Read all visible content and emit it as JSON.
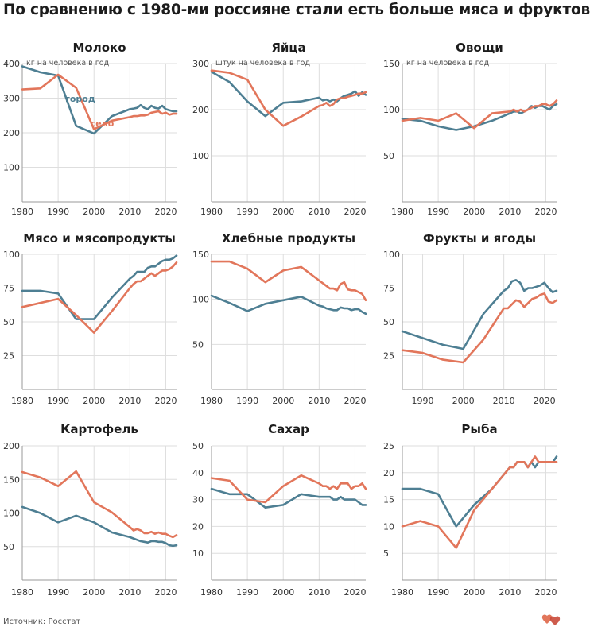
{
  "title": "По сравнению с 1980-ми россияне стали есть больше мяса и фруктов",
  "source": "Источник: Росстат",
  "colors": {
    "город": "#4e7f93",
    "село": "#e2765b"
  },
  "logo_icon": "red-heart-logo-icon",
  "chart_data": [
    {
      "type": "line",
      "title": "Молоко",
      "unit_note": "кг на человека в год",
      "xlim": [
        1980,
        2023
      ],
      "ylim": [
        0,
        400
      ],
      "xticks": [
        1980,
        1990,
        2000,
        2010,
        2020
      ],
      "yticks": [
        100,
        200,
        300,
        400
      ],
      "series_labels": [
        {
          "series": "город",
          "text": "город"
        },
        {
          "series": "село",
          "text": "село"
        }
      ],
      "series": [
        {
          "name": "город",
          "x": [
            1980,
            1985,
            1990,
            1995,
            2000,
            2005,
            2010,
            2011,
            2012,
            2013,
            2014,
            2015,
            2016,
            2017,
            2018,
            2019,
            2020,
            2021,
            2022,
            2023
          ],
          "y": [
            392,
            375,
            365,
            220,
            198,
            248,
            268,
            270,
            272,
            280,
            272,
            268,
            278,
            272,
            270,
            278,
            268,
            265,
            262,
            262
          ]
        },
        {
          "name": "село",
          "x": [
            1980,
            1985,
            1990,
            1995,
            2000,
            2005,
            2010,
            2011,
            2012,
            2013,
            2014,
            2015,
            2016,
            2017,
            2018,
            2019,
            2020,
            2021,
            2022,
            2023
          ],
          "y": [
            325,
            328,
            368,
            330,
            210,
            235,
            245,
            248,
            248,
            250,
            250,
            252,
            258,
            260,
            262,
            255,
            258,
            252,
            255,
            255
          ]
        }
      ]
    },
    {
      "type": "line",
      "title": "Яйца",
      "unit_note": "штук на человека в год",
      "xlim": [
        1980,
        2023
      ],
      "ylim": [
        0,
        300
      ],
      "xticks": [
        1980,
        1990,
        2000,
        2010,
        2020
      ],
      "yticks": [
        100,
        200,
        300
      ],
      "series": [
        {
          "name": "город",
          "x": [
            1980,
            1985,
            1990,
            1995,
            2000,
            2005,
            2010,
            2011,
            2012,
            2013,
            2014,
            2015,
            2016,
            2017,
            2018,
            2019,
            2020,
            2021,
            2022,
            2023
          ],
          "y": [
            282,
            260,
            218,
            186,
            215,
            218,
            226,
            220,
            222,
            218,
            222,
            218,
            225,
            230,
            232,
            235,
            240,
            230,
            238,
            232
          ]
        },
        {
          "name": "село",
          "x": [
            1980,
            1985,
            1990,
            1995,
            2000,
            2005,
            2010,
            2011,
            2012,
            2013,
            2014,
            2015,
            2016,
            2017,
            2018,
            2019,
            2020,
            2021,
            2022,
            2023
          ],
          "y": [
            285,
            280,
            265,
            200,
            165,
            185,
            208,
            210,
            215,
            208,
            212,
            222,
            225,
            225,
            228,
            230,
            232,
            235,
            235,
            238
          ]
        }
      ]
    },
    {
      "type": "line",
      "title": "Овощи",
      "unit_note": "кг на человека в год",
      "xlim": [
        1980,
        2023
      ],
      "ylim": [
        0,
        150
      ],
      "xticks": [
        1980,
        1990,
        2000,
        2010,
        2020
      ],
      "yticks": [
        50,
        100,
        150
      ],
      "series": [
        {
          "name": "город",
          "x": [
            1980,
            1985,
            1990,
            1995,
            2000,
            2005,
            2010,
            2011,
            2012,
            2013,
            2014,
            2015,
            2016,
            2017,
            2018,
            2019,
            2020,
            2021,
            2022,
            2023
          ],
          "y": [
            90,
            88,
            82,
            78,
            82,
            88,
            96,
            98,
            98,
            96,
            98,
            100,
            104,
            102,
            104,
            104,
            102,
            100,
            104,
            106
          ]
        },
        {
          "name": "село",
          "x": [
            1980,
            1985,
            1990,
            1995,
            2000,
            2005,
            2010,
            2011,
            2012,
            2013,
            2014,
            2015,
            2016,
            2017,
            2018,
            2019,
            2020,
            2021,
            2022,
            2023
          ],
          "y": [
            88,
            91,
            88,
            96,
            80,
            96,
            98,
            100,
            98,
            100,
            98,
            100,
            102,
            104,
            104,
            106,
            106,
            104,
            106,
            110
          ]
        }
      ]
    },
    {
      "type": "line",
      "title": "Мясо и мясопродукты",
      "xlim": [
        1980,
        2023
      ],
      "ylim": [
        0,
        100
      ],
      "xticks": [
        1980,
        1990,
        2000,
        2010,
        2020
      ],
      "yticks": [
        25,
        50,
        75,
        100
      ],
      "series": [
        {
          "name": "город",
          "x": [
            1980,
            1985,
            1990,
            1995,
            2000,
            2005,
            2010,
            2011,
            2012,
            2013,
            2014,
            2015,
            2016,
            2017,
            2018,
            2019,
            2020,
            2021,
            2022,
            2023
          ],
          "y": [
            73,
            73,
            71,
            52,
            52,
            68,
            82,
            84,
            87,
            87,
            87,
            90,
            91,
            91,
            93,
            95,
            96,
            96,
            97,
            99
          ]
        },
        {
          "name": "село",
          "x": [
            1980,
            1985,
            1990,
            1995,
            2000,
            2005,
            2010,
            2011,
            2012,
            2013,
            2014,
            2015,
            2016,
            2017,
            2018,
            2019,
            2020,
            2021,
            2022,
            2023
          ],
          "y": [
            61,
            64,
            67,
            55,
            42,
            58,
            75,
            78,
            80,
            80,
            82,
            84,
            86,
            84,
            86,
            88,
            88,
            89,
            91,
            94
          ]
        }
      ]
    },
    {
      "type": "line",
      "title": "Хлебные продукты",
      "xlim": [
        1980,
        2023
      ],
      "ylim": [
        0,
        150
      ],
      "xticks": [
        1980,
        1990,
        2000,
        2010,
        2020
      ],
      "yticks": [
        50,
        100,
        150
      ],
      "series": [
        {
          "name": "город",
          "x": [
            1980,
            1985,
            1990,
            1995,
            2000,
            2005,
            2010,
            2011,
            2012,
            2013,
            2014,
            2015,
            2016,
            2017,
            2018,
            2019,
            2020,
            2021,
            2022,
            2023
          ],
          "y": [
            104,
            96,
            87,
            95,
            99,
            103,
            93,
            92,
            90,
            89,
            88,
            88,
            91,
            90,
            90,
            88,
            89,
            89,
            86,
            84
          ]
        },
        {
          "name": "село",
          "x": [
            1980,
            1985,
            1990,
            1995,
            2000,
            2005,
            2010,
            2011,
            2012,
            2013,
            2014,
            2015,
            2016,
            2017,
            2018,
            2019,
            2020,
            2021,
            2022,
            2023
          ],
          "y": [
            142,
            142,
            134,
            119,
            132,
            136,
            121,
            118,
            115,
            112,
            112,
            110,
            117,
            119,
            111,
            110,
            110,
            108,
            106,
            99
          ]
        }
      ]
    },
    {
      "type": "line",
      "title": "Фрукты и ягоды",
      "xlim": [
        1985,
        2023
      ],
      "ylim": [
        0,
        100
      ],
      "xticks": [
        1990,
        2000,
        2010,
        2020
      ],
      "yticks": [
        25,
        50,
        75,
        100
      ],
      "series": [
        {
          "name": "город",
          "x": [
            1985,
            1990,
            1995,
            2000,
            2005,
            2010,
            2011,
            2012,
            2013,
            2014,
            2015,
            2016,
            2017,
            2018,
            2019,
            2020,
            2021,
            2022,
            2023
          ],
          "y": [
            43,
            38,
            33,
            30,
            56,
            73,
            75,
            80,
            81,
            79,
            73,
            75,
            75,
            76,
            77,
            79,
            75,
            72,
            73
          ]
        },
        {
          "name": "село",
          "x": [
            1985,
            1990,
            1995,
            2000,
            2005,
            2010,
            2011,
            2012,
            2013,
            2014,
            2015,
            2016,
            2017,
            2018,
            2019,
            2020,
            2021,
            2022,
            2023
          ],
          "y": [
            29,
            27,
            22,
            20,
            37,
            60,
            60,
            63,
            66,
            65,
            61,
            64,
            67,
            68,
            70,
            71,
            65,
            64,
            66
          ]
        }
      ]
    },
    {
      "type": "line",
      "title": "Картофель",
      "xlim": [
        1980,
        2023
      ],
      "ylim": [
        0,
        200
      ],
      "xticks": [
        1980,
        1990,
        2000,
        2010,
        2020
      ],
      "yticks": [
        50,
        100,
        150,
        200
      ],
      "series": [
        {
          "name": "город",
          "x": [
            1980,
            1985,
            1990,
            1995,
            2000,
            2005,
            2010,
            2011,
            2012,
            2013,
            2014,
            2015,
            2016,
            2017,
            2018,
            2019,
            2020,
            2021,
            2022,
            2023
          ],
          "y": [
            109,
            100,
            86,
            96,
            86,
            71,
            64,
            62,
            60,
            58,
            57,
            56,
            58,
            58,
            57,
            57,
            55,
            52,
            51,
            52
          ]
        },
        {
          "name": "село",
          "x": [
            1980,
            1985,
            1990,
            1995,
            2000,
            2005,
            2010,
            2011,
            2012,
            2013,
            2014,
            2015,
            2016,
            2017,
            2018,
            2019,
            2020,
            2021,
            2022,
            2023
          ],
          "y": [
            161,
            153,
            140,
            162,
            116,
            101,
            79,
            74,
            76,
            74,
            70,
            70,
            72,
            69,
            71,
            69,
            69,
            66,
            64,
            67
          ]
        }
      ]
    },
    {
      "type": "line",
      "title": "Сахар",
      "xlim": [
        1980,
        2023
      ],
      "ylim": [
        0,
        50
      ],
      "xticks": [
        1980,
        1990,
        2000,
        2010,
        2020
      ],
      "yticks": [
        10,
        20,
        30,
        40,
        50
      ],
      "series": [
        {
          "name": "город",
          "x": [
            1980,
            1985,
            1990,
            1995,
            2000,
            2005,
            2010,
            2011,
            2012,
            2013,
            2014,
            2015,
            2016,
            2017,
            2018,
            2019,
            2020,
            2021,
            2022,
            2023
          ],
          "y": [
            34,
            32,
            32,
            27,
            28,
            32,
            31,
            31,
            31,
            31,
            30,
            30,
            31,
            30,
            30,
            30,
            30,
            29,
            28,
            28
          ]
        },
        {
          "name": "село",
          "x": [
            1980,
            1985,
            1990,
            1995,
            2000,
            2005,
            2010,
            2011,
            2012,
            2013,
            2014,
            2015,
            2016,
            2017,
            2018,
            2019,
            2020,
            2021,
            2022,
            2023
          ],
          "y": [
            38,
            37,
            30,
            29,
            35,
            39,
            36,
            35,
            35,
            34,
            35,
            34,
            36,
            36,
            36,
            34,
            35,
            35,
            36,
            34
          ]
        }
      ]
    },
    {
      "type": "line",
      "title": "Рыба",
      "xlim": [
        1980,
        2023
      ],
      "ylim": [
        0,
        25
      ],
      "xticks": [
        1980,
        1990,
        2000,
        2010,
        2020
      ],
      "yticks": [
        5,
        10,
        15,
        20,
        25
      ],
      "series": [
        {
          "name": "город",
          "x": [
            1980,
            1985,
            1990,
            1995,
            2000,
            2005,
            2010,
            2011,
            2012,
            2013,
            2014,
            2015,
            2016,
            2017,
            2018,
            2019,
            2020,
            2021,
            2022,
            2023
          ],
          "y": [
            17,
            17,
            16,
            10,
            14,
            17,
            21,
            21,
            22,
            22,
            22,
            21,
            22,
            21,
            22,
            22,
            22,
            22,
            22,
            23
          ]
        },
        {
          "name": "село",
          "x": [
            1980,
            1985,
            1990,
            1995,
            2000,
            2005,
            2010,
            2011,
            2012,
            2013,
            2014,
            2015,
            2016,
            2017,
            2018,
            2019,
            2020,
            2021,
            2022,
            2023
          ],
          "y": [
            10,
            11,
            10,
            6,
            13,
            17,
            21,
            21,
            22,
            22,
            22,
            21,
            22,
            23,
            22,
            22,
            22,
            22,
            22,
            22
          ]
        }
      ]
    }
  ]
}
